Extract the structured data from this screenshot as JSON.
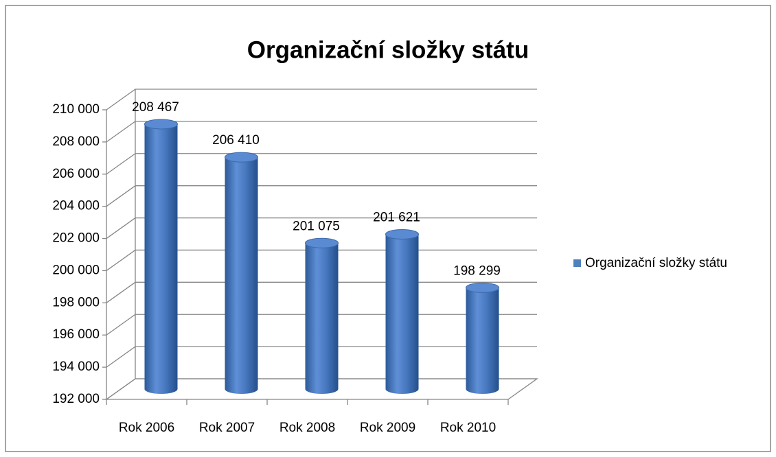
{
  "chart_data": {
    "type": "bar3d",
    "title": "Organizační složky státu",
    "categories": [
      "Rok 2006",
      "Rok 2007",
      "Rok 2008",
      "Rok 2009",
      "Rok 2010"
    ],
    "series": [
      {
        "name": "Organizační složky státu",
        "color": "#4f81bd",
        "values": [
          208467,
          206410,
          201075,
          201621,
          198299
        ],
        "value_labels": [
          "208 467",
          "206 410",
          "201 075",
          "201 621",
          "198 299"
        ]
      }
    ],
    "ylim": [
      192000,
      210000
    ],
    "yticks": [
      {
        "value": 192000,
        "label": "192 000"
      },
      {
        "value": 194000,
        "label": "194 000"
      },
      {
        "value": 196000,
        "label": "196 000"
      },
      {
        "value": 198000,
        "label": "198 000"
      },
      {
        "value": 200000,
        "label": "200 000"
      },
      {
        "value": 202000,
        "label": "202 000"
      },
      {
        "value": 204000,
        "label": "204 000"
      },
      {
        "value": 206000,
        "label": "206 000"
      },
      {
        "value": 208000,
        "label": "208 000"
      },
      {
        "value": 210000,
        "label": "210 000"
      }
    ],
    "grid": true,
    "legend": "right"
  }
}
